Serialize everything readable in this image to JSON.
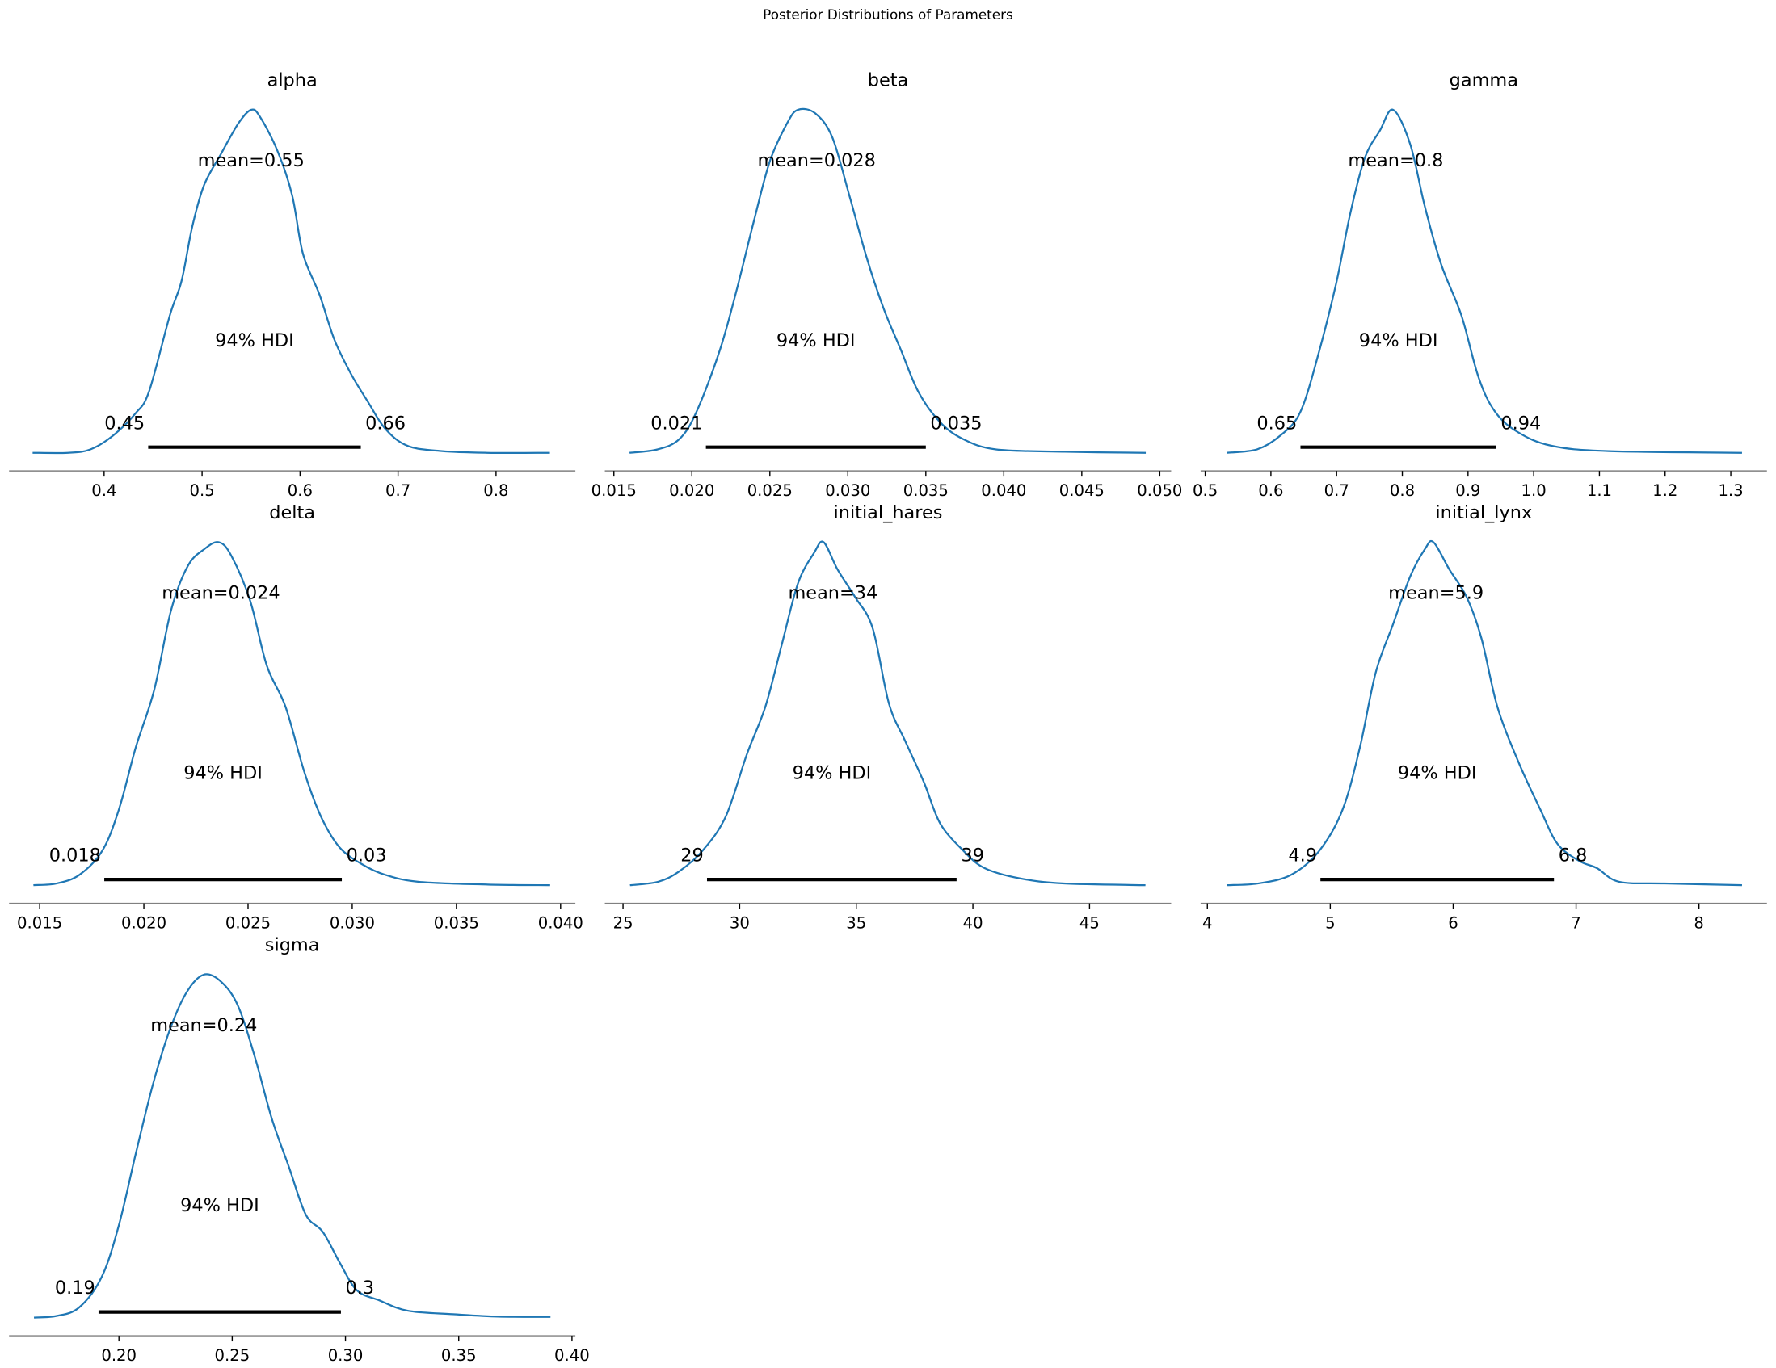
{
  "chart_data": {
    "type": "line",
    "title": "Posterior Distributions of Parameters",
    "hdi_label": "94% HDI",
    "line_color": "#1f77b4",
    "hdi_color": "#000000",
    "axis_color": "#808080",
    "panels": [
      {
        "name": "alpha",
        "mean_label": "mean=0.55",
        "mean": 0.55,
        "hdi": [
          0.445,
          0.662
        ],
        "hdi_labels": [
          "0.45",
          "0.66"
        ],
        "xlim": [
          0.303,
          0.881
        ],
        "ticks": [
          0.4,
          0.5,
          0.6,
          0.7,
          0.8
        ],
        "tick_labels": [
          "0.4",
          "0.5",
          "0.6",
          "0.7",
          "0.8"
        ],
        "x": [
          0.327,
          0.363,
          0.386,
          0.409,
          0.432,
          0.446,
          0.467,
          0.479,
          0.49,
          0.502,
          0.519,
          0.537,
          0.55,
          0.559,
          0.577,
          0.592,
          0.603,
          0.62,
          0.635,
          0.652,
          0.669,
          0.687,
          0.71,
          0.745,
          0.791,
          0.855
        ],
        "density": [
          0,
          0,
          0.01,
          0.05,
          0.115,
          0.18,
          0.4,
          0.5,
          0.66,
          0.78,
          0.87,
          0.96,
          1.0,
          0.98,
          0.88,
          0.75,
          0.58,
          0.46,
          0.33,
          0.23,
          0.15,
          0.07,
          0.02,
          0.005,
          0,
          0
        ]
      },
      {
        "name": "beta",
        "mean_label": "mean=0.028",
        "mean": 0.028,
        "hdi": [
          0.0209,
          0.035
        ],
        "hdi_labels": [
          "0.021",
          "0.035"
        ],
        "xlim": [
          0.01442,
          0.05073
        ],
        "ticks": [
          0.015,
          0.02,
          0.025,
          0.03,
          0.035,
          0.04,
          0.045,
          0.05
        ],
        "tick_labels": [
          "0.015",
          "0.020",
          "0.025",
          "0.030",
          "0.035",
          "0.040",
          "0.045",
          "0.050"
        ],
        "x": [
          0.016,
          0.0178,
          0.0192,
          0.0203,
          0.0218,
          0.0229,
          0.024,
          0.025,
          0.0261,
          0.0268,
          0.0279,
          0.029,
          0.0301,
          0.0312,
          0.0323,
          0.0334,
          0.0345,
          0.0359,
          0.0374,
          0.0395,
          0.0439,
          0.0491
        ],
        "density": [
          0,
          0.01,
          0.04,
          0.12,
          0.3,
          0.48,
          0.68,
          0.85,
          0.96,
          1.0,
          0.99,
          0.92,
          0.75,
          0.57,
          0.42,
          0.3,
          0.18,
          0.09,
          0.04,
          0.01,
          0.003,
          0
        ]
      },
      {
        "name": "gamma",
        "mean_label": "mean=0.8",
        "mean": 0.79,
        "hdi": [
          0.645,
          0.943
        ],
        "hdi_labels": [
          "0.65",
          "0.94"
        ],
        "xlim": [
          0.493,
          1.355
        ],
        "ticks": [
          0.5,
          0.6,
          0.7,
          0.8,
          0.9,
          1.0,
          1.1,
          1.2,
          1.3
        ],
        "tick_labels": [
          "0.5",
          "0.6",
          "0.7",
          "0.8",
          "0.9",
          "1.0",
          "1.1",
          "1.2",
          "1.3"
        ],
        "x": [
          0.533,
          0.579,
          0.614,
          0.645,
          0.674,
          0.7,
          0.721,
          0.743,
          0.766,
          0.786,
          0.812,
          0.834,
          0.859,
          0.89,
          0.916,
          0.941,
          0.976,
          1.028,
          1.114,
          1.317
        ],
        "density": [
          0,
          0.01,
          0.05,
          0.12,
          0.3,
          0.5,
          0.7,
          0.86,
          0.94,
          1.0,
          0.9,
          0.72,
          0.55,
          0.4,
          0.22,
          0.12,
          0.06,
          0.02,
          0.005,
          0
        ]
      },
      {
        "name": "delta",
        "mean_label": "mean=0.024",
        "mean": 0.0237,
        "hdi": [
          0.0181,
          0.0295
        ],
        "hdi_labels": [
          "0.018",
          "0.03"
        ],
        "xlim": [
          0.01353,
          0.04071
        ],
        "ticks": [
          0.015,
          0.02,
          0.025,
          0.03,
          0.035,
          0.04
        ],
        "tick_labels": [
          "0.015",
          "0.020",
          "0.025",
          "0.030",
          "0.035",
          "0.040"
        ],
        "x": [
          0.0147,
          0.0158,
          0.0169,
          0.018,
          0.0188,
          0.0196,
          0.0205,
          0.0213,
          0.0221,
          0.0229,
          0.0236,
          0.0242,
          0.0251,
          0.0259,
          0.0268,
          0.0277,
          0.0285,
          0.0294,
          0.0305,
          0.0316,
          0.0332,
          0.0365,
          0.0395
        ],
        "density": [
          0,
          0.005,
          0.03,
          0.1,
          0.22,
          0.4,
          0.57,
          0.8,
          0.93,
          0.98,
          1.0,
          0.96,
          0.83,
          0.64,
          0.52,
          0.33,
          0.2,
          0.11,
          0.06,
          0.03,
          0.01,
          0.002,
          0
        ]
      },
      {
        "name": "initial_hares",
        "mean_label": "mean=34",
        "mean": 34.0,
        "hdi": [
          28.6,
          39.3
        ],
        "hdi_labels": [
          "29",
          "39"
        ],
        "xlim": [
          24.22,
          48.5
        ],
        "ticks": [
          25,
          30,
          35,
          40,
          45
        ],
        "tick_labels": [
          "25",
          "30",
          "35",
          "40",
          "45"
        ],
        "x": [
          25.3,
          26.5,
          27.4,
          28.4,
          29.4,
          30.3,
          31.1,
          31.8,
          32.5,
          33.2,
          33.6,
          34.2,
          34.95,
          35.7,
          36.4,
          37.1,
          37.9,
          38.6,
          39.6,
          40.5,
          42.0,
          43.9,
          47.4
        ],
        "density": [
          0,
          0.01,
          0.04,
          0.1,
          0.2,
          0.38,
          0.52,
          0.7,
          0.88,
          0.97,
          1.0,
          0.92,
          0.84,
          0.75,
          0.53,
          0.42,
          0.3,
          0.18,
          0.1,
          0.05,
          0.02,
          0.005,
          0
        ]
      },
      {
        "name": "initial_lynx",
        "mean_label": "mean=5.9",
        "mean": 5.86,
        "hdi": [
          4.92,
          6.82
        ],
        "hdi_labels": [
          "4.9",
          "6.8"
        ],
        "xlim": [
          3.945,
          8.553
        ],
        "ticks": [
          4,
          5,
          6,
          7,
          8
        ],
        "tick_labels": [
          "4",
          "5",
          "6",
          "7",
          "8"
        ],
        "x": [
          4.16,
          4.41,
          4.68,
          4.91,
          5.1,
          5.24,
          5.37,
          5.51,
          5.65,
          5.77,
          5.84,
          5.97,
          6.11,
          6.23,
          6.36,
          6.53,
          6.71,
          6.85,
          7.03,
          7.17,
          7.35,
          7.72,
          8.35
        ],
        "density": [
          0,
          0.005,
          0.03,
          0.1,
          0.22,
          0.4,
          0.62,
          0.76,
          0.9,
          0.98,
          1.0,
          0.92,
          0.84,
          0.72,
          0.52,
          0.36,
          0.22,
          0.12,
          0.07,
          0.05,
          0.01,
          0.005,
          0
        ]
      },
      {
        "name": "sigma",
        "mean_label": "mean=0.24",
        "mean": 0.2375,
        "hdi": [
          0.191,
          0.298
        ],
        "hdi_labels": [
          "0.19",
          "0.3"
        ],
        "xlim": [
          0.1515,
          0.4015
        ],
        "ticks": [
          0.2,
          0.25,
          0.3,
          0.35,
          0.4
        ],
        "tick_labels": [
          "0.20",
          "0.25",
          "0.30",
          "0.35",
          "0.40"
        ],
        "x": [
          0.1625,
          0.1725,
          0.1825,
          0.1925,
          0.2,
          0.2075,
          0.215,
          0.2225,
          0.23,
          0.2375,
          0.245,
          0.2525,
          0.26,
          0.2675,
          0.275,
          0.2825,
          0.29,
          0.2975,
          0.305,
          0.315,
          0.3275,
          0.3475,
          0.3675,
          0.3905
        ],
        "density": [
          0,
          0.005,
          0.03,
          0.12,
          0.27,
          0.48,
          0.68,
          0.84,
          0.95,
          1.0,
          0.98,
          0.91,
          0.76,
          0.58,
          0.44,
          0.3,
          0.25,
          0.16,
          0.08,
          0.05,
          0.02,
          0.01,
          0.003,
          0.002
        ]
      }
    ]
  }
}
